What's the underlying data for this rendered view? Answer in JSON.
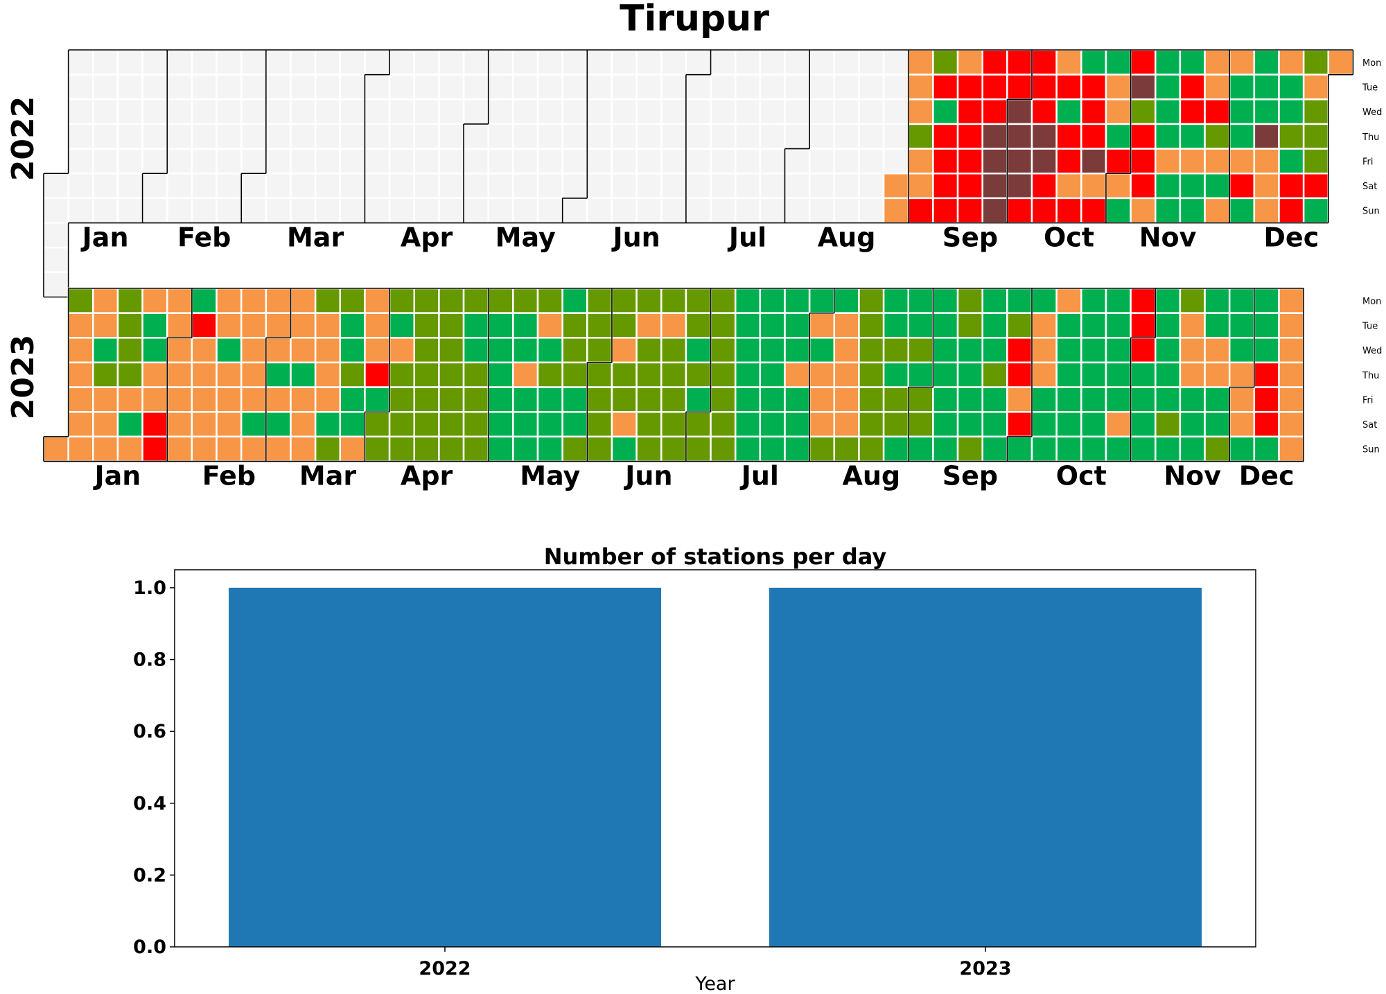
{
  "title": "Tirupur",
  "colors": {
    "no_data": "#f4f4f4",
    "good": "#00b050",
    "satisfactory": "#669900",
    "moderate": "#f79646",
    "poor": "#ff0000",
    "very_poor": "#7b3b3b",
    "grid_line": "#ffffff",
    "month_border": "#000000",
    "bar": "#1f77b4"
  },
  "chart_data": [
    {
      "type": "heatmap",
      "year_label": "2022",
      "first_weekday_mon0": 5,
      "weekday_labels": [
        "Mon",
        "Tue",
        "Wed",
        "Thu",
        "Fri",
        "Sat",
        "Sun"
      ],
      "month_labels": [
        "Jan",
        "Feb",
        "Mar",
        "Apr",
        "May",
        "Jun",
        "Jul",
        "Aug",
        "Sep",
        "Oct",
        "Nov",
        "Dec"
      ],
      "category_key": {
        "0": "no_data",
        "1": "good",
        "2": "satisfactory",
        "3": "moderate",
        "4": "poor",
        "5": "very_poor"
      },
      "weeks": [
        "00000",
        "0000000",
        "0000000",
        "0000000",
        "0000000",
        "0000000",
        "0000000",
        "0000000",
        "0000000",
        "0000000",
        "0000000",
        "0000000",
        "0000000",
        "0000000",
        "0000000",
        "0000000",
        "0000000",
        "0000000",
        "0000000",
        "0000000",
        "0000000",
        "0000000",
        "0000000",
        "0000000",
        "0000000",
        "0000000",
        "0000000",
        "0000000",
        "0000000",
        "0000000",
        "0000000",
        "0000000",
        "0000000",
        "0000000",
        "0000033",
        "3332334",
        "2414444",
        "3444444",
        "4445555",
        "4455554",
        "4445544",
        "3414434",
        "1444534",
        "1331431",
        "4524443",
        "1111311",
        "1441311",
        "3342313",
        "3111341",
        "1115333",
        "3112144",
        "2322241",
        "3"
      ]
    },
    {
      "type": "heatmap",
      "year_label": "2023",
      "first_weekday_mon0": 6,
      "weekday_labels": [
        "Mon",
        "Tue",
        "Wed",
        "Thu",
        "Fri",
        "Sat",
        "Sun"
      ],
      "month_labels": [
        "Jan",
        "Feb",
        "Mar",
        "Apr",
        "May",
        "Jun",
        "Jul",
        "Aug",
        "Sep",
        "Oct",
        "Nov",
        "Dec"
      ],
      "category_key": {
        "0": "no_data",
        "1": "good",
        "2": "satisfactory",
        "3": "moderate",
        "4": "poor",
        "5": "very_poor"
      },
      "weeks": [
        "3",
        "2333333",
        "3312333",
        "2222313",
        "3113344",
        "3333333",
        "1433333",
        "3313333",
        "3333313",
        "3331313",
        "3331333",
        "2333312",
        "2112113",
        "3334122",
        "2132222",
        "2222222",
        "2222222",
        "2112222",
        "2111111",
        "2113111",
        "2312111",
        "1222112",
        "2222222",
        "2232231",
        "2322222",
        "2322222",
        "2212122",
        "2222222",
        "1111111",
        "1111111",
        "1113111",
        "1313332",
        "1333332",
        "2222222",
        "1121221",
        "1121221",
        "1111111",
        "2211112",
        "1112111",
        "1244341",
        "1333111",
        "3111111",
        "1111111",
        "1111131",
        "4441111",
        "1111121",
        "2333111",
        "1133112",
        "1113331",
        "1114441",
        "3333333"
      ]
    },
    {
      "type": "bar",
      "title": "Number of stations per day",
      "categories": [
        "2022",
        "2023"
      ],
      "values": [
        1.0,
        1.0
      ],
      "xlabel": "Year",
      "ylabel": "",
      "ylim": [
        0,
        1.05
      ],
      "yticks": [
        "0.0",
        "0.2",
        "0.4",
        "0.6",
        "0.8",
        "1.0"
      ]
    }
  ]
}
